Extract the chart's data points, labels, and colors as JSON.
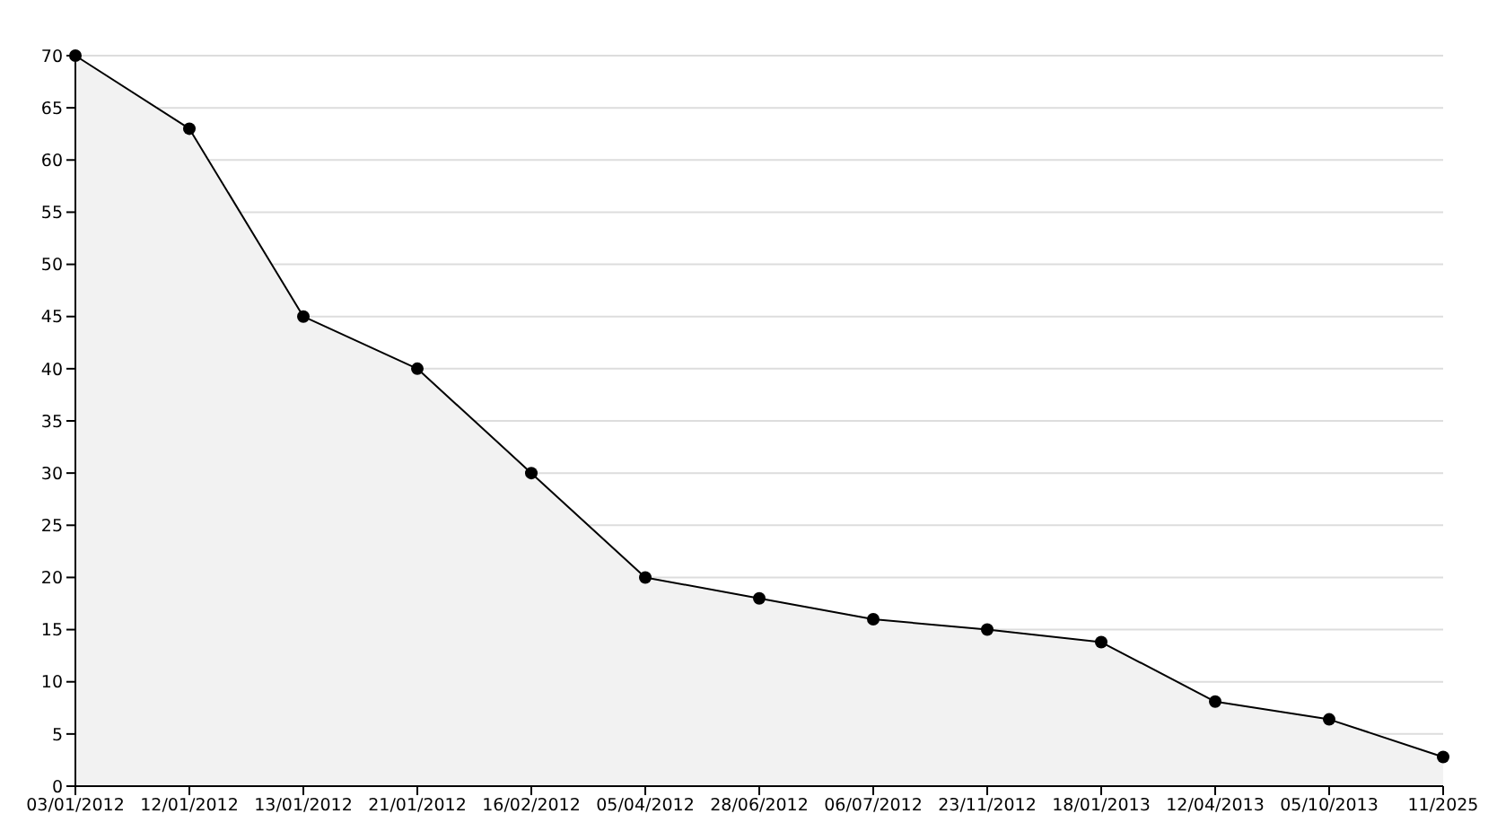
{
  "chart_data": {
    "type": "area",
    "categories": [
      "03/01/2012",
      "12/01/2012",
      "13/01/2012",
      "21/01/2012",
      "16/02/2012",
      "05/04/2012",
      "28/06/2012",
      "06/07/2012",
      "23/11/2012",
      "18/01/2013",
      "12/04/2013",
      "05/10/2013",
      "11/2025"
    ],
    "series": [
      {
        "color": "#000000",
        "values": [
          70,
          63,
          45,
          40,
          30,
          20,
          18,
          16,
          15,
          13.8,
          8.1,
          6.4,
          2.8
        ]
      }
    ],
    "ylim": [
      0,
      70
    ],
    "yticks": [
      0,
      5,
      10,
      15,
      20,
      25,
      30,
      35,
      40,
      45,
      50,
      55,
      60,
      65,
      70
    ],
    "grid": "y",
    "marker": "circle",
    "line_style": "solid"
  }
}
